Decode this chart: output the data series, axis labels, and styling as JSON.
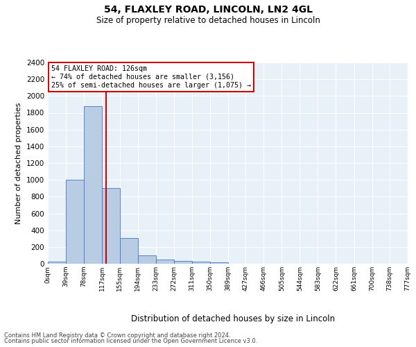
{
  "title1": "54, FLAXLEY ROAD, LINCOLN, LN2 4GL",
  "title2": "Size of property relative to detached houses in Lincoln",
  "xlabel": "Distribution of detached houses by size in Lincoln",
  "ylabel": "Number of detached properties",
  "footnote1": "Contains HM Land Registry data © Crown copyright and database right 2024.",
  "footnote2": "Contains public sector information licensed under the Open Government Licence v3.0.",
  "annotation_line1": "54 FLAXLEY ROAD: 126sqm",
  "annotation_line2": "← 74% of detached houses are smaller (3,156)",
  "annotation_line3": "25% of semi-detached houses are larger (1,075) →",
  "bar_edges": [
    0,
    39,
    78,
    117,
    155,
    194,
    233,
    272,
    311,
    350,
    389,
    427,
    466,
    505,
    544,
    583,
    622,
    661,
    700,
    738,
    777
  ],
  "bar_heights": [
    25,
    1000,
    1875,
    900,
    310,
    100,
    50,
    30,
    25,
    20,
    0,
    0,
    0,
    0,
    0,
    0,
    0,
    0,
    0,
    0
  ],
  "bar_color": "#b8cce4",
  "bar_edgecolor": "#4472c4",
  "tick_labels": [
    "0sqm",
    "39sqm",
    "78sqm",
    "117sqm",
    "155sqm",
    "194sqm",
    "233sqm",
    "272sqm",
    "311sqm",
    "350sqm",
    "389sqm",
    "427sqm",
    "466sqm",
    "505sqm",
    "544sqm",
    "583sqm",
    "622sqm",
    "661sqm",
    "700sqm",
    "738sqm",
    "777sqm"
  ],
  "vline_x": 126,
  "vline_color": "#cc0000",
  "ylim": [
    0,
    2400
  ],
  "yticks": [
    0,
    200,
    400,
    600,
    800,
    1000,
    1200,
    1400,
    1600,
    1800,
    2000,
    2200,
    2400
  ],
  "bg_color": "#e8f0f8",
  "annotation_box_edgecolor": "#cc0000",
  "annotation_box_facecolor": "#ffffff"
}
